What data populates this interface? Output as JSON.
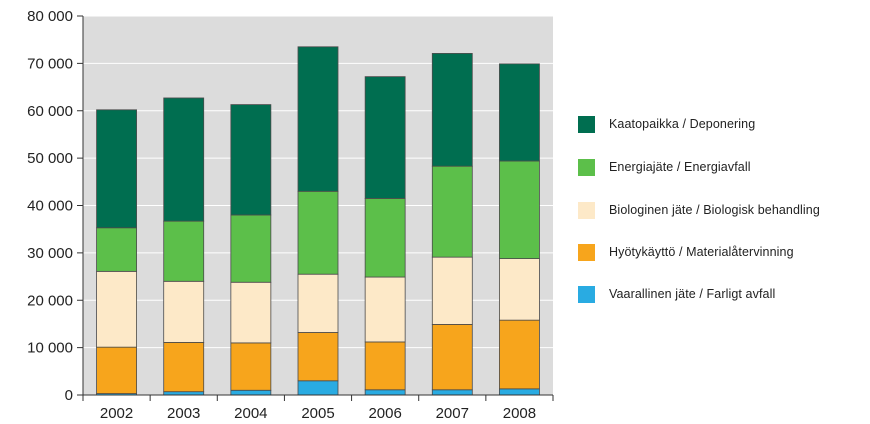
{
  "chart_data": {
    "type": "bar",
    "stacked": true,
    "categories": [
      "2002",
      "2003",
      "2004",
      "2005",
      "2006",
      "2007",
      "2008"
    ],
    "ylim": [
      0,
      80000
    ],
    "y_ticks": [
      "0",
      "10 000",
      "20 000",
      "30 000",
      "40 000",
      "50 000",
      "60 000",
      "70 000",
      "80 000"
    ],
    "y_tick_values": [
      0,
      10000,
      20000,
      30000,
      40000,
      50000,
      60000,
      70000,
      80000
    ],
    "grid": true,
    "plot_background": "#dcdcdc",
    "legend_position": "right",
    "series": [
      {
        "name": "Vaarallinen jäte / Farligt avfall",
        "color": "#29abe2",
        "values": [
          300,
          700,
          1000,
          3000,
          1100,
          1100,
          1300
        ]
      },
      {
        "name": "Hyötykäyttö / Materialåtervinning",
        "color": "#f7a51c",
        "values": [
          9800,
          10400,
          10000,
          10200,
          10100,
          13800,
          14500
        ]
      },
      {
        "name": "Biologinen jäte / Biologisk behandling",
        "color": "#fde9c8",
        "values": [
          16000,
          12900,
          12800,
          12300,
          13700,
          14200,
          13000
        ]
      },
      {
        "name": "Energiajäte / Energiavfall",
        "color": "#5cbf4a",
        "values": [
          9200,
          12700,
          14200,
          17500,
          16600,
          19200,
          20600
        ]
      },
      {
        "name": "Kaatopaikka / Deponering",
        "color": "#006e50",
        "values": [
          24900,
          26000,
          23300,
          30500,
          25700,
          23800,
          20500
        ]
      }
    ]
  }
}
